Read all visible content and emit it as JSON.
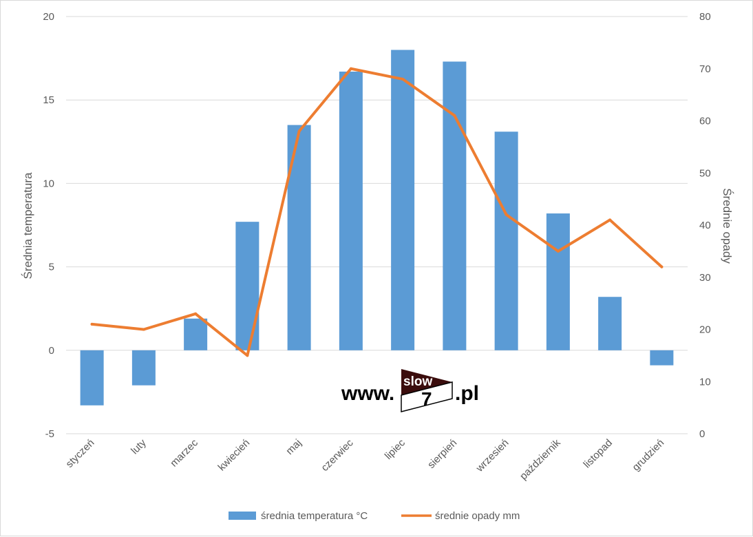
{
  "chart_data": {
    "type": "bar",
    "categories": [
      "styczeń",
      "luty",
      "marzec",
      "kwiecień",
      "maj",
      "czerwiec",
      "lipiec",
      "sierpień",
      "wrzesień",
      "październik",
      "listopad",
      "grudzień"
    ],
    "series": [
      {
        "name": "średnia temperatura °C",
        "type": "bar",
        "axis": "left",
        "color": "#5b9bd5",
        "values": [
          -3.3,
          -2.1,
          1.9,
          7.7,
          13.5,
          16.7,
          18.0,
          17.3,
          13.1,
          8.2,
          3.2,
          -0.9
        ]
      },
      {
        "name": "średnie opady mm",
        "type": "line",
        "axis": "right",
        "color": "#ed7d31",
        "values": [
          21,
          20,
          23,
          15,
          58,
          70,
          68,
          61,
          42,
          35,
          41,
          32
        ]
      }
    ],
    "ylabel": "Średnia temperatura",
    "y2label": "Średnie opady",
    "ylim": [
      -5,
      20
    ],
    "y2lim": [
      0,
      80
    ],
    "yticks": [
      "20",
      "15",
      "10",
      "5",
      "0",
      "-5"
    ],
    "y2ticks": [
      "80",
      "70",
      "60",
      "50",
      "40",
      "30",
      "20",
      "10",
      "0"
    ],
    "grid": true,
    "legend_position": "bottom"
  },
  "watermark": {
    "prefix": "www.",
    "logo_top": "slow",
    "logo_num": "7",
    "suffix": ".pl"
  }
}
